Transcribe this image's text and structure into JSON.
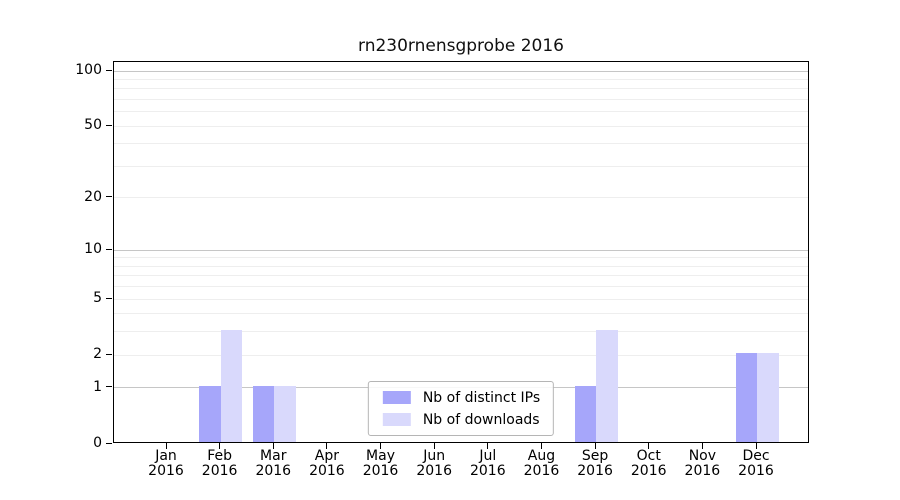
{
  "chart_data": {
    "type": "bar",
    "title": "rn230rnensgprobe 2016",
    "categories": [
      "Jan",
      "Feb",
      "Mar",
      "Apr",
      "May",
      "Jun",
      "Jul",
      "Aug",
      "Sep",
      "Oct",
      "Nov",
      "Dec"
    ],
    "category_year": "2016",
    "series": [
      {
        "name": "Nb of distinct IPs",
        "color": "#a6a6fa",
        "values": [
          0,
          1,
          1,
          0,
          0,
          0,
          0,
          0,
          1,
          0,
          0,
          2
        ]
      },
      {
        "name": "Nb of downloads",
        "color": "#d9d9fc",
        "values": [
          0,
          3,
          1,
          0,
          0,
          0,
          0,
          0,
          3,
          0,
          0,
          2
        ]
      }
    ],
    "yscale": "log10(1+x)",
    "ylim": [
      0,
      112
    ],
    "yticks": [
      0,
      1,
      2,
      5,
      10,
      20,
      50,
      100
    ],
    "major_gridlines": [
      1,
      10,
      100
    ],
    "minor_gridlines": [
      2,
      3,
      4,
      5,
      6,
      7,
      8,
      9,
      20,
      30,
      40,
      50,
      60,
      70,
      80,
      90
    ],
    "grid": true,
    "legend_position": "lower center",
    "xlabel": "",
    "ylabel": ""
  },
  "colors": {
    "axis": "#000000",
    "major_grid": "#c6c6c6",
    "minor_grid": "#eeeeee",
    "text": "#000000",
    "legend_border": "#b5b5b5"
  }
}
